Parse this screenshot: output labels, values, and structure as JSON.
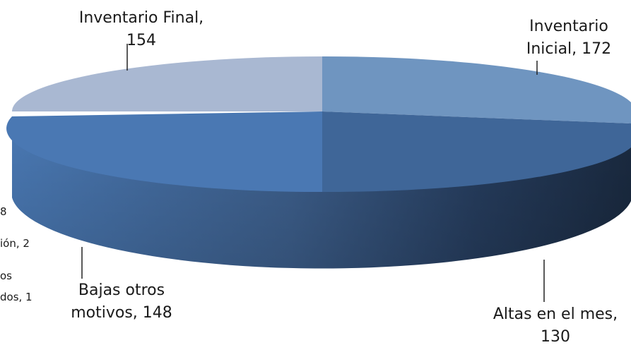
{
  "chart_data": {
    "type": "pie",
    "title": "",
    "style": "3d-exploded-view",
    "slices": [
      {
        "label": "Inventario Inicial",
        "value": 172,
        "color": "#6f95c0"
      },
      {
        "label": "Altas en el mes",
        "value": 130,
        "color": "#3f6698"
      },
      {
        "label": "Bajas otros motivos",
        "value": 148,
        "color": "#4a78b3"
      },
      {
        "label": "Inventario Final",
        "value": 154,
        "color": "#a9b8d2"
      }
    ],
    "partial_labels": [
      {
        "text": "8"
      },
      {
        "text": "ión, 2"
      },
      {
        "text": "os"
      },
      {
        "text": "dos, 1"
      }
    ],
    "label_lines": {
      "inventario_final": [
        "Inventario Final,",
        "154"
      ],
      "inventario_inicial": [
        "Inventario",
        "Inicial, 172"
      ],
      "altas": [
        "Altas en el mes,",
        "130"
      ],
      "bajas": [
        "Bajas otros",
        "motivos, 148"
      ]
    }
  }
}
